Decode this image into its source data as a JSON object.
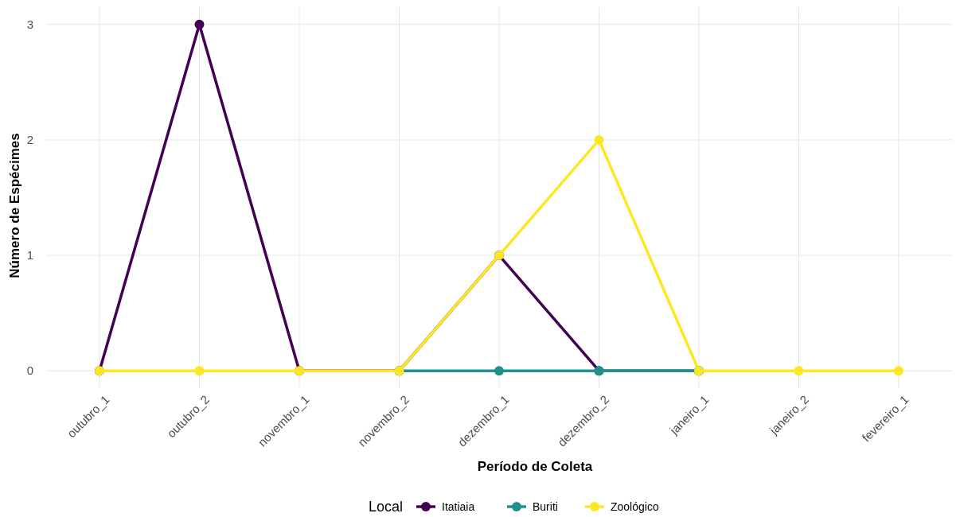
{
  "chart_data": {
    "type": "line",
    "xlabel": "Período de Coleta",
    "ylabel": "Número de Espécimes",
    "legend_title": "Local",
    "legend": "bottom",
    "grid": true,
    "marker": "circle",
    "line_style": "solid",
    "categories": [
      "outubro_1",
      "outubro_2",
      "novembro_1",
      "novembro_2",
      "dezembro_1",
      "dezembro_2",
      "janeiro_1",
      "janeiro_2",
      "fevereiro_1"
    ],
    "ylim": [
      -0.15,
      3.15
    ],
    "yticks": [
      0,
      1,
      2,
      3
    ],
    "series": [
      {
        "name": "Itatiaia",
        "color": "#440154",
        "values": [
          0,
          3,
          0,
          0,
          1,
          0,
          0,
          null,
          null
        ]
      },
      {
        "name": "Buriti",
        "color": "#21908c",
        "values": [
          null,
          null,
          null,
          0,
          0,
          0,
          0,
          null,
          null
        ]
      },
      {
        "name": "Zoológico",
        "color": "#fde725",
        "values": [
          0,
          0,
          0,
          0,
          1,
          2,
          0,
          0,
          0
        ]
      }
    ]
  }
}
